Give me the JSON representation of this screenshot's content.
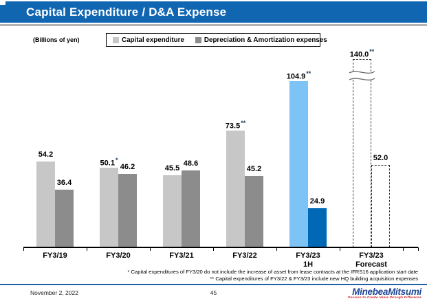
{
  "slide": {
    "title": "Capital Expenditure / D&A Expense",
    "units_label": "(Billions of yen)",
    "footnotes": [
      "* Capital expenditures of FY3/20 do not include the increase of asset from lease contracts at the IFRS16 application start date",
      "** Capital expenditures of FY3/22 & FY3/23 include new HQ building acquisition expenses"
    ],
    "footer": {
      "date": "November 2, 2022",
      "page_number": "45",
      "logo_text": "MinebeaMitsumi",
      "logo_tagline": "Passion to Create Value through Difference"
    }
  },
  "colors": {
    "header_blue": "#1166B2",
    "capex_gray": "#C7C7C7",
    "da_gray": "#8C8C8C",
    "capex_blue": "#7EC3F5",
    "da_blue": "#0068B4",
    "marker_navy": "#17375E",
    "footer_line_blue": "#1F5FA8",
    "logo_blue": "#1E4696",
    "logo_red": "#D3222A"
  },
  "chart_data": {
    "type": "bar",
    "title": "Capital Expenditure / D&A Expense",
    "unit": "Billions of yen",
    "grid": false,
    "legend_position": "top",
    "ylim": [
      0,
      120
    ],
    "categories": [
      {
        "label_lines": [
          "FY3/19"
        ],
        "style": "gray"
      },
      {
        "label_lines": [
          "FY3/20"
        ],
        "style": "gray"
      },
      {
        "label_lines": [
          "FY3/21"
        ],
        "style": "gray"
      },
      {
        "label_lines": [
          "FY3/22"
        ],
        "style": "gray"
      },
      {
        "label_lines": [
          "FY3/23",
          "1H"
        ],
        "style": "blue"
      },
      {
        "label_lines": [
          "FY3/23",
          "Forecast"
        ],
        "style": "dashed-forecast"
      }
    ],
    "series": [
      {
        "name": "Capital expenditure",
        "points": [
          {
            "value": 54.2
          },
          {
            "value": 50.1,
            "marker": "*"
          },
          {
            "value": 45.5
          },
          {
            "value": 73.5,
            "marker": "**"
          },
          {
            "value": 104.9,
            "marker": "**"
          },
          {
            "value": 140.0,
            "marker": "**",
            "axis_break": true
          }
        ]
      },
      {
        "name": "Depreciation & Amortization expenses",
        "points": [
          {
            "value": 36.4
          },
          {
            "value": 46.2
          },
          {
            "value": 48.6
          },
          {
            "value": 45.2
          },
          {
            "value": 24.9
          },
          {
            "value": 52.0
          }
        ]
      }
    ],
    "annotations": "FY3/23 Forecast bars shown as dashed outlines; 140.0 capital-expenditure forecast bar drawn with an axis break"
  }
}
